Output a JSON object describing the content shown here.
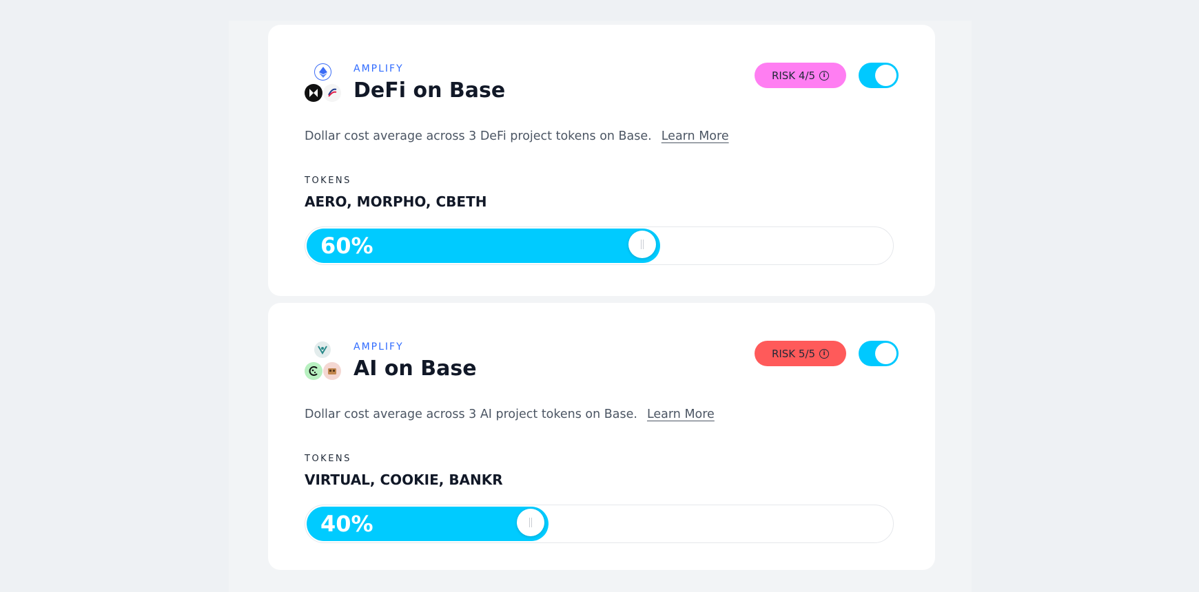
{
  "colors": {
    "accent": "#00cbff",
    "eyebrow": "#2f6bff",
    "risk_4": "#ff7ef2",
    "risk_5": "#ff5a5a"
  },
  "strategies": [
    {
      "eyebrow": "AMPLIFY",
      "title": "DeFi on Base",
      "risk": "RISK 4/5",
      "risk_color": "#ff7ef2",
      "enabled": true,
      "description": "Dollar cost average across 3 DeFi project tokens on Base.",
      "learn_more": "Learn More",
      "tokens_label": "TOKENS",
      "tokens": "AERO, MORPHO, CBETH",
      "allocation": 60,
      "allocation_label": "60%",
      "icons": [
        "ethereum-icon",
        "morpho-icon",
        "aero-icon"
      ]
    },
    {
      "eyebrow": "AMPLIFY",
      "title": "AI on Base",
      "risk": "RISK 5/5",
      "risk_color": "#ff5a5a",
      "enabled": true,
      "description": "Dollar cost average across 3 AI project tokens on Base.",
      "learn_more": "Learn More",
      "tokens_label": "TOKENS",
      "tokens": "VIRTUAL, COOKIE, BANKR",
      "allocation": 40,
      "allocation_label": "40%",
      "icons": [
        "virtual-icon",
        "cookie-icon",
        "bankr-icon"
      ]
    }
  ]
}
